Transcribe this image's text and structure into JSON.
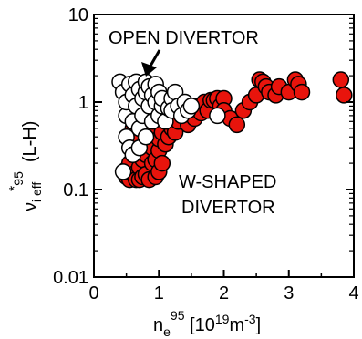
{
  "chart_data": {
    "type": "scatter",
    "xlim": [
      0,
      4
    ],
    "ylim": [
      0.01,
      10
    ],
    "ylog": true,
    "grid": false,
    "xticks": [
      {
        "value": 0,
        "label": "0"
      },
      {
        "value": 1,
        "label": "1"
      },
      {
        "value": 2,
        "label": "2"
      },
      {
        "value": 3,
        "label": "3"
      },
      {
        "value": 4,
        "label": "4"
      }
    ],
    "yticks": [
      {
        "value": 0.01,
        "label": "0.01"
      },
      {
        "value": 0.1,
        "label": "0.1"
      },
      {
        "value": 1,
        "label": "1"
      },
      {
        "value": 10,
        "label": "10"
      }
    ],
    "xlabel": {
      "main": "n",
      "sub": "e",
      "sup": "95",
      "bracket_open": " [10",
      "exp": "19",
      "unit": "m",
      "unit_exp": "-3",
      "bracket_close": "]"
    },
    "ylabel": {
      "star": "*",
      "main": "ν",
      "sub": "i eff",
      "sup": "95",
      "suffix": "(L-H)"
    },
    "annotations": {
      "open": "OPEN DIVERTOR",
      "w_line1": "W-SHAPED",
      "w_line2": "DIVERTOR"
    },
    "colors": {
      "w_shaped": "#e8140c",
      "open": "#ffffff",
      "edge": "#000000"
    },
    "series": [
      {
        "label_ref": "w_shaped",
        "points": [
          [
            0.5,
            0.17
          ],
          [
            0.5,
            0.14
          ],
          [
            0.55,
            0.13
          ],
          [
            0.55,
            0.2
          ],
          [
            0.6,
            0.15
          ],
          [
            0.6,
            0.3
          ],
          [
            0.6,
            0.5
          ],
          [
            0.6,
            0.8
          ],
          [
            0.6,
            1.2
          ],
          [
            0.65,
            0.13
          ],
          [
            0.7,
            0.18
          ],
          [
            0.7,
            0.13
          ],
          [
            0.7,
            0.4
          ],
          [
            0.7,
            0.7
          ],
          [
            0.7,
            1.0
          ],
          [
            0.75,
            0.22
          ],
          [
            0.75,
            0.14
          ],
          [
            0.8,
            0.15
          ],
          [
            0.8,
            0.25
          ],
          [
            0.8,
            0.6
          ],
          [
            0.8,
            0.9
          ],
          [
            0.85,
            0.13
          ],
          [
            0.85,
            0.35
          ],
          [
            0.9,
            0.2
          ],
          [
            0.9,
            0.3
          ],
          [
            0.9,
            0.45
          ],
          [
            0.95,
            0.14
          ],
          [
            0.95,
            0.22
          ],
          [
            1.0,
            0.16
          ],
          [
            1.0,
            0.28
          ],
          [
            1.0,
            0.38
          ],
          [
            1.05,
            0.2
          ],
          [
            1.05,
            0.45
          ],
          [
            1.1,
            0.33
          ],
          [
            1.1,
            0.6
          ],
          [
            1.1,
            0.9
          ],
          [
            1.15,
            0.4
          ],
          [
            1.2,
            0.5
          ],
          [
            1.2,
            0.7
          ],
          [
            1.25,
            0.45
          ],
          [
            1.3,
            0.6
          ],
          [
            1.3,
            1.0
          ],
          [
            1.4,
            0.7
          ],
          [
            1.45,
            0.55
          ],
          [
            1.5,
            0.85
          ],
          [
            1.55,
            0.65
          ],
          [
            1.6,
            0.9
          ],
          [
            1.65,
            0.75
          ],
          [
            1.7,
            1.0
          ],
          [
            1.75,
            0.8
          ],
          [
            1.8,
            1.05
          ],
          [
            1.85,
            1.05
          ],
          [
            1.9,
            1.1
          ],
          [
            1.95,
            0.9
          ],
          [
            2.0,
            1.1
          ],
          [
            2.0,
            0.8
          ],
          [
            2.1,
            0.65
          ],
          [
            2.2,
            0.55
          ],
          [
            2.3,
            0.8
          ],
          [
            2.4,
            1.0
          ],
          [
            2.5,
            1.2
          ],
          [
            2.55,
            1.8
          ],
          [
            2.6,
            1.7
          ],
          [
            2.65,
            1.5
          ],
          [
            2.7,
            1.3
          ],
          [
            2.8,
            1.2
          ],
          [
            2.85,
            1.5
          ],
          [
            3.0,
            1.3
          ],
          [
            3.1,
            1.8
          ],
          [
            3.15,
            1.6
          ],
          [
            3.2,
            1.3
          ],
          [
            3.8,
            1.8
          ],
          [
            3.85,
            1.2
          ]
        ]
      },
      {
        "label_ref": "open",
        "points": [
          [
            0.4,
            1.7
          ],
          [
            0.45,
            0.16
          ],
          [
            0.45,
            1.3
          ],
          [
            0.5,
            0.4
          ],
          [
            0.5,
            0.7
          ],
          [
            0.5,
            1.0
          ],
          [
            0.55,
            0.3
          ],
          [
            0.55,
            1.6
          ],
          [
            0.6,
            0.25
          ],
          [
            0.6,
            0.6
          ],
          [
            0.6,
            1.2
          ],
          [
            0.65,
            0.9
          ],
          [
            0.65,
            1.7
          ],
          [
            0.7,
            0.3
          ],
          [
            0.7,
            0.5
          ],
          [
            0.7,
            1.4
          ],
          [
            0.75,
            0.7
          ],
          [
            0.75,
            1.1
          ],
          [
            0.8,
            0.4
          ],
          [
            0.8,
            1.3
          ],
          [
            0.8,
            1.7
          ],
          [
            0.85,
            0.9
          ],
          [
            0.85,
            1.5
          ],
          [
            0.9,
            0.6
          ],
          [
            0.9,
            1.2
          ],
          [
            0.95,
            1.0
          ],
          [
            0.95,
            1.6
          ],
          [
            1.0,
            0.7
          ],
          [
            1.0,
            1.3
          ],
          [
            1.05,
            0.9
          ],
          [
            1.05,
            1.1
          ],
          [
            1.1,
            0.6
          ],
          [
            1.15,
            0.85
          ],
          [
            1.2,
            1.1
          ],
          [
            1.2,
            0.8
          ],
          [
            1.25,
            1.3
          ],
          [
            1.3,
            0.9
          ],
          [
            1.35,
            0.7
          ],
          [
            1.4,
            1.0
          ],
          [
            1.45,
            0.8
          ],
          [
            1.5,
            0.9
          ],
          [
            1.9,
            0.7
          ]
        ]
      }
    ]
  }
}
